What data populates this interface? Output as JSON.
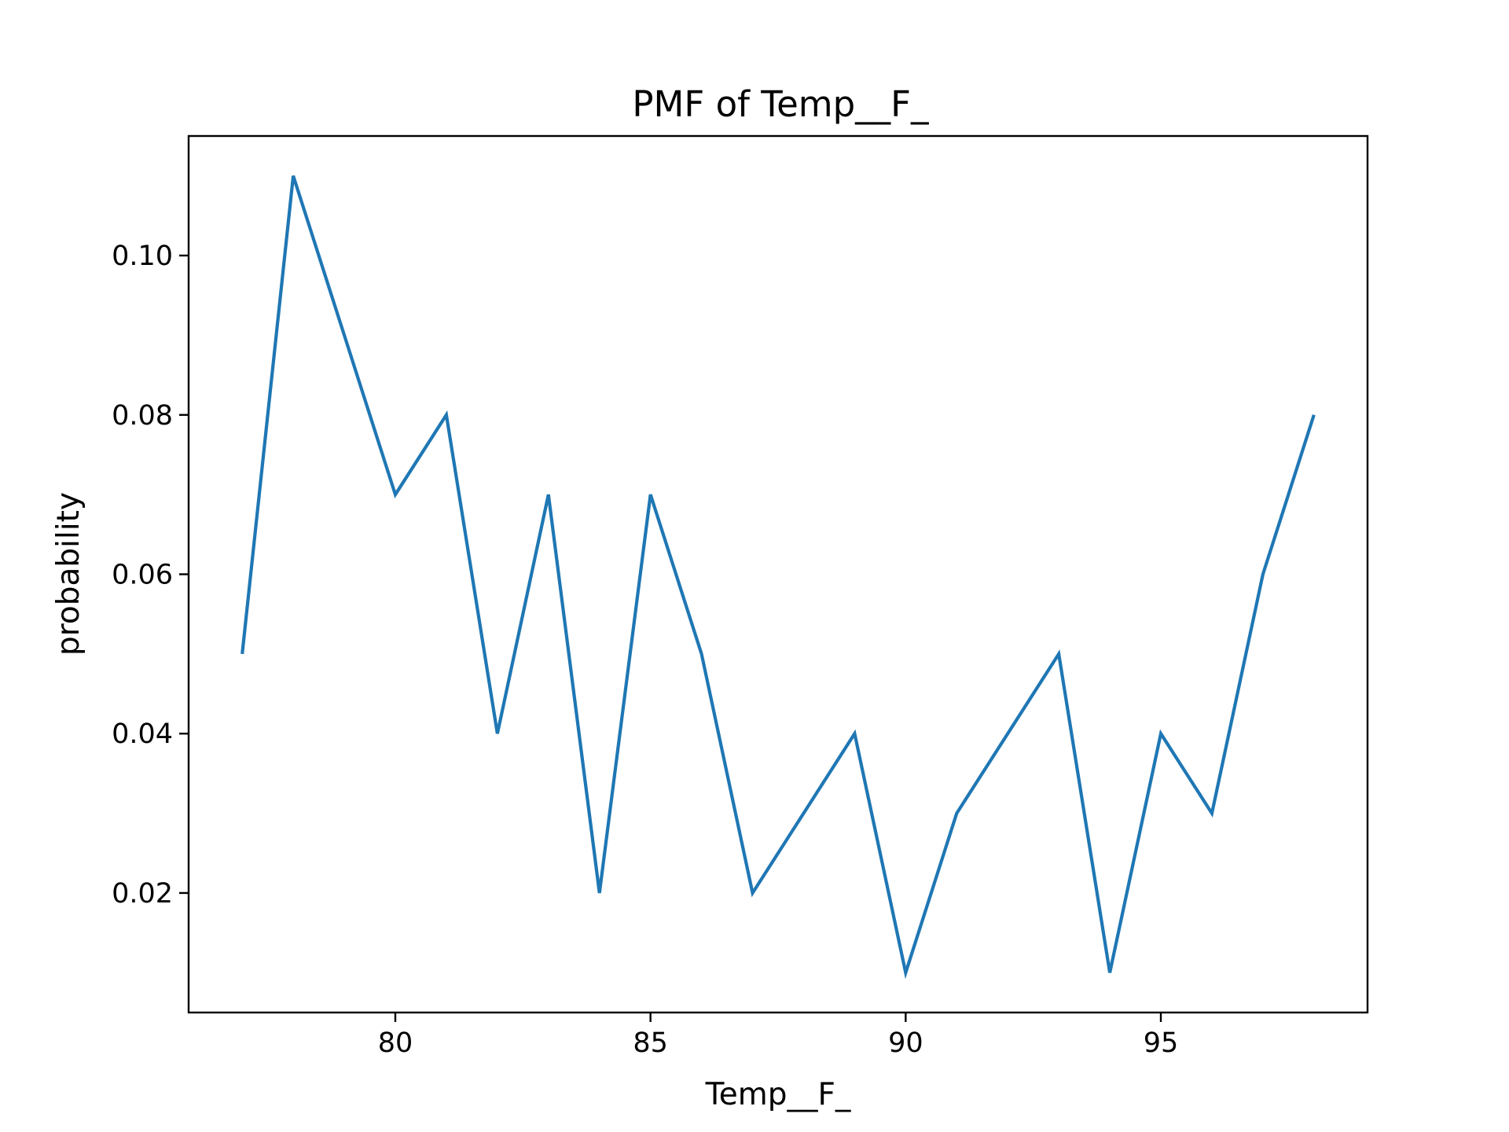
{
  "chart_data": {
    "type": "line",
    "title": "PMF of Temp__F_",
    "xlabel": "Temp__F_",
    "ylabel": "probability",
    "xlim": [
      75.95,
      99.05
    ],
    "ylim": [
      0.005,
      0.115
    ],
    "x_ticks": [
      80,
      85,
      90,
      95
    ],
    "x_tick_labels": [
      "80",
      "85",
      "90",
      "95"
    ],
    "y_ticks": [
      0.02,
      0.04,
      0.06,
      0.08,
      0.1
    ],
    "y_tick_labels": [
      "0.02",
      "0.04",
      "0.06",
      "0.08",
      "0.10"
    ],
    "grid": false,
    "legend": "none",
    "series": [
      {
        "color": "#1f77b4",
        "x": [
          77,
          78,
          79,
          80,
          81,
          82,
          83,
          84,
          85,
          86,
          87,
          88,
          89,
          90,
          91,
          92,
          93,
          94,
          95,
          96,
          97,
          98
        ],
        "values": [
          0.05,
          0.11,
          0.09,
          0.07,
          0.08,
          0.04,
          0.07,
          0.02,
          0.07,
          0.05,
          0.02,
          0.03,
          0.04,
          0.01,
          0.03,
          0.04,
          0.05,
          0.01,
          0.04,
          0.03,
          0.06,
          0.08
        ]
      }
    ]
  }
}
